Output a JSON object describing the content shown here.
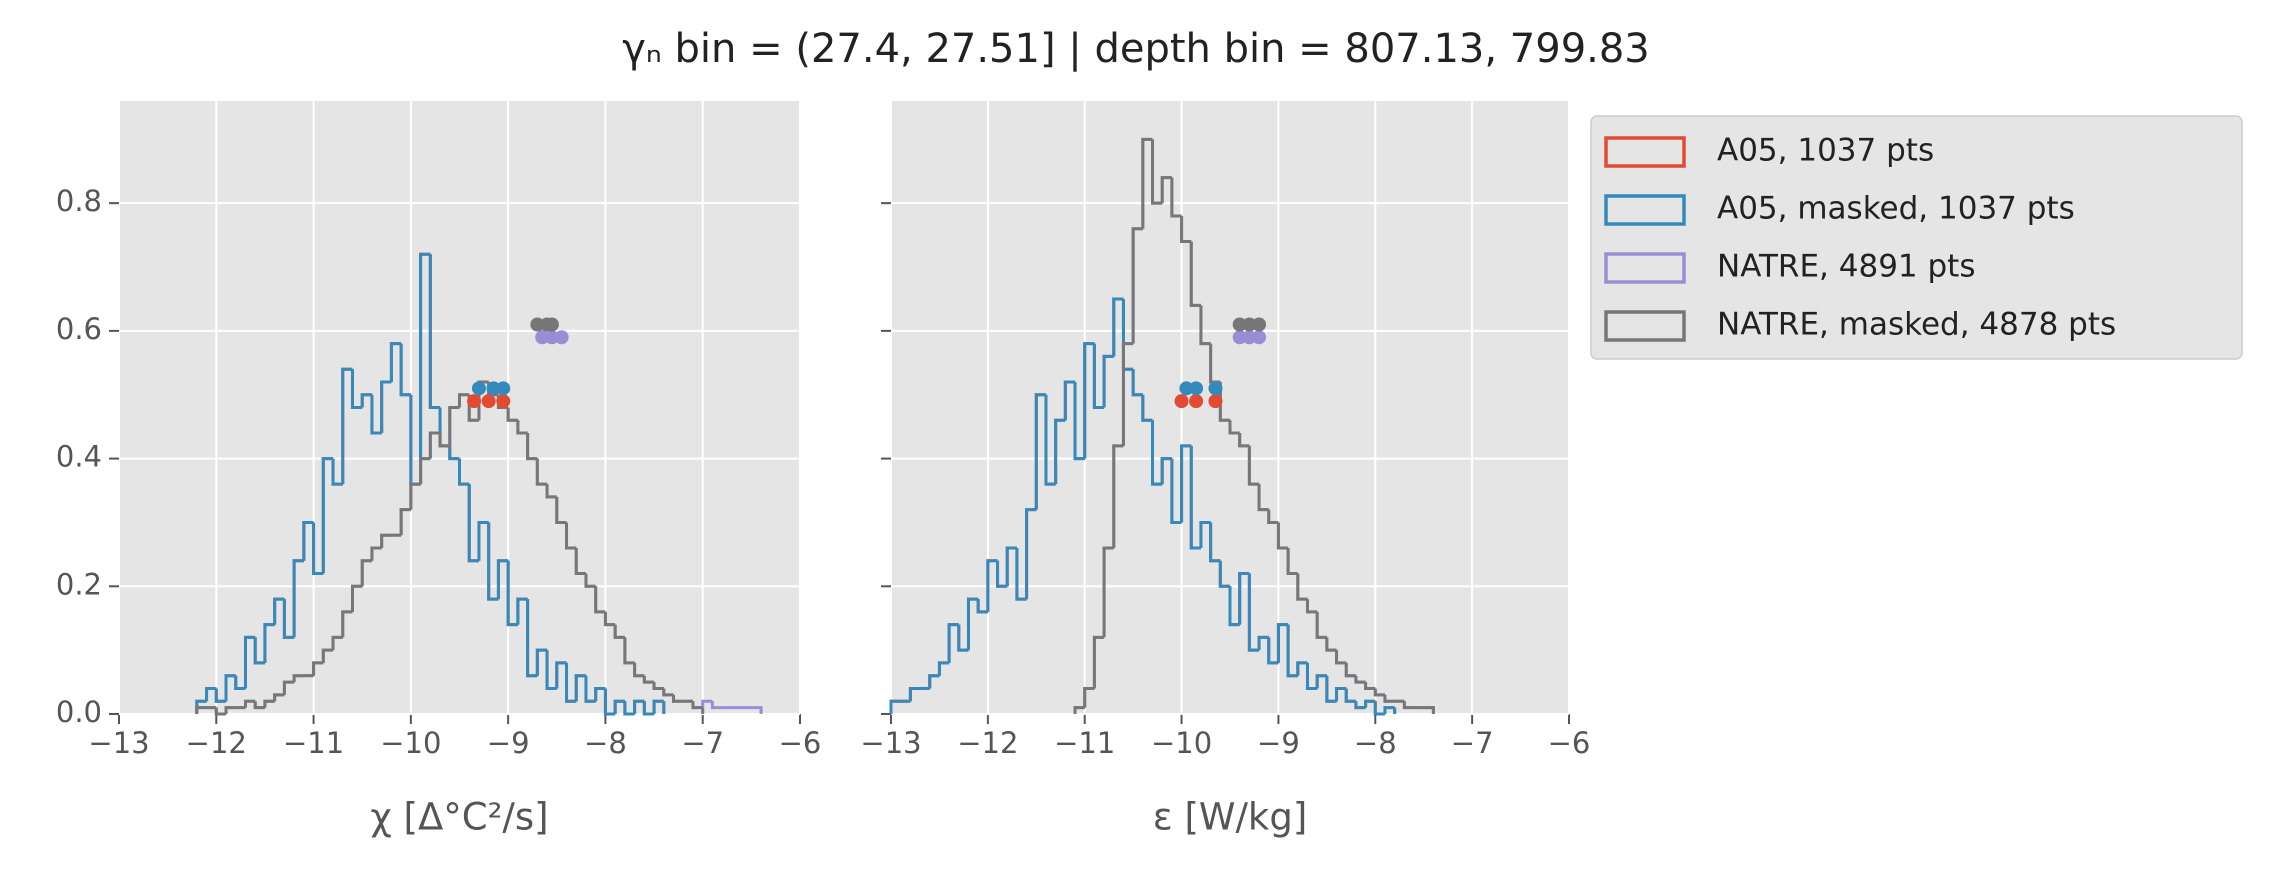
{
  "title": "γₙ bin = (27.4, 27.51] | depth bin = 807.13, 799.83",
  "legend": "outside upper right",
  "chart_data": [
    {
      "type": "histogram",
      "xlabel": "χ [Δ°C²/s]",
      "xlim": [
        -13,
        -6
      ],
      "xticks": [
        {
          "value": -13,
          "label": "−13"
        },
        {
          "value": -12,
          "label": "−12"
        },
        {
          "value": -11,
          "label": "−11"
        },
        {
          "value": -10,
          "label": "−10"
        },
        {
          "value": -9,
          "label": "−9"
        },
        {
          "value": -8,
          "label": "−8"
        },
        {
          "value": -7,
          "label": "−7"
        },
        {
          "value": -6,
          "label": "−6"
        }
      ],
      "ylim": [
        0,
        0.96
      ],
      "yticks": [
        {
          "value": 0,
          "label": "0.0"
        },
        0.2,
        0.4,
        0.6,
        0.8
      ],
      "ytick_labels": true,
      "grid": true,
      "bins": [
        -12.2,
        -12.1,
        -12.0,
        -11.9,
        -11.8,
        -11.7,
        -11.6,
        -11.5,
        -11.4,
        -11.3,
        -11.2,
        -11.1,
        -11.0,
        -10.9,
        -10.8,
        -10.7,
        -10.6,
        -10.5,
        -10.4,
        -10.3,
        -10.2,
        -10.1,
        -10.0,
        -9.9,
        -9.8,
        -9.7,
        -9.6,
        -9.5,
        -9.4,
        -9.3,
        -9.2,
        -9.1,
        -9.0,
        -8.9,
        -8.8,
        -8.7,
        -8.6,
        -8.5,
        -8.4,
        -8.3,
        -8.2,
        -8.1,
        -8.0,
        -7.9,
        -7.8,
        -7.7,
        -7.6,
        -7.5,
        -7.4,
        -7.3,
        -7.2,
        -7.1,
        -7.0,
        -6.9,
        -6.8,
        -6.7,
        -6.6,
        -6.5,
        -6.4
      ],
      "series": [
        {
          "name": "A05, 1037 pts",
          "color": "#E24A33",
          "values": [
            0.02,
            0.04,
            0.02,
            0.06,
            0.04,
            0.12,
            0.08,
            0.14,
            0.18,
            0.12,
            0.24,
            0.3,
            0.22,
            0.4,
            0.36,
            0.54,
            0.48,
            0.5,
            0.44,
            0.52,
            0.58,
            0.5,
            0.36,
            0.72,
            0.48,
            0.42,
            0.4,
            0.36,
            0.24,
            0.3,
            0.18,
            0.24,
            0.14,
            0.18,
            0.06,
            0.1,
            0.04,
            0.08,
            0.02,
            0.06,
            0.02,
            0.04,
            0.0,
            0.02,
            0.0,
            0.02,
            0.0,
            0.02,
            null,
            null,
            null,
            null,
            null,
            null,
            null,
            null,
            null,
            null
          ],
          "marker_x": [
            -9.35,
            -9.2,
            -9.05
          ],
          "marker_y": 0.49
        },
        {
          "name": "A05, masked,  1037 pts",
          "color": "#348ABD",
          "values": [
            0.02,
            0.04,
            0.02,
            0.06,
            0.04,
            0.12,
            0.08,
            0.14,
            0.18,
            0.12,
            0.24,
            0.3,
            0.22,
            0.4,
            0.36,
            0.54,
            0.48,
            0.5,
            0.44,
            0.52,
            0.58,
            0.5,
            0.36,
            0.72,
            0.48,
            0.42,
            0.4,
            0.36,
            0.24,
            0.3,
            0.18,
            0.24,
            0.14,
            0.18,
            0.06,
            0.1,
            0.04,
            0.08,
            0.02,
            0.06,
            0.02,
            0.04,
            0.0,
            0.02,
            0.0,
            0.02,
            0.0,
            0.02,
            null,
            null,
            null,
            null,
            null,
            null,
            null,
            null,
            null,
            null
          ],
          "marker_x": [
            -9.3,
            -9.15,
            -9.05
          ],
          "marker_y": 0.51
        },
        {
          "name": "NATRE, 4891 pts",
          "color": "#988ED5",
          "values": [
            0.01,
            0.01,
            0.0,
            0.01,
            0.01,
            0.02,
            0.01,
            0.02,
            0.03,
            0.05,
            0.06,
            0.06,
            0.08,
            0.1,
            0.12,
            0.16,
            0.2,
            0.24,
            0.26,
            0.28,
            0.28,
            0.32,
            0.36,
            0.4,
            0.44,
            0.42,
            0.48,
            0.5,
            0.46,
            0.52,
            0.5,
            0.48,
            0.46,
            0.44,
            0.4,
            0.36,
            0.34,
            0.3,
            0.26,
            0.22,
            0.2,
            0.16,
            0.14,
            0.12,
            0.08,
            0.06,
            0.05,
            0.04,
            0.03,
            0.02,
            0.02,
            0.01,
            0.02,
            0.01,
            0.01,
            0.01,
            0.01,
            0.01
          ],
          "marker_x": [
            -8.65,
            -8.55,
            -8.45
          ],
          "marker_y": 0.59
        },
        {
          "name": "NATRE, masked,  4878 pts",
          "color": "#777777",
          "values": [
            0.01,
            0.01,
            0.0,
            0.01,
            0.01,
            0.02,
            0.01,
            0.02,
            0.03,
            0.05,
            0.06,
            0.06,
            0.08,
            0.1,
            0.12,
            0.16,
            0.2,
            0.24,
            0.26,
            0.28,
            0.28,
            0.32,
            0.36,
            0.4,
            0.44,
            0.42,
            0.48,
            0.5,
            0.46,
            0.52,
            0.5,
            0.48,
            0.46,
            0.44,
            0.4,
            0.36,
            0.34,
            0.3,
            0.26,
            0.22,
            0.2,
            0.16,
            0.14,
            0.12,
            0.08,
            0.06,
            0.05,
            0.04,
            0.03,
            0.02,
            0.02,
            0.01,
            null,
            null,
            null,
            null,
            null,
            null
          ],
          "marker_x": [
            -8.7,
            -8.6,
            -8.55
          ],
          "marker_y": 0.61
        }
      ]
    },
    {
      "type": "histogram",
      "xlabel": "ε [W/kg]",
      "xlim": [
        -13,
        -6
      ],
      "xticks": [
        {
          "value": -13,
          "label": "−13"
        },
        {
          "value": -12,
          "label": "−12"
        },
        {
          "value": -11,
          "label": "−11"
        },
        {
          "value": -10,
          "label": "−10"
        },
        {
          "value": -9,
          "label": "−9"
        },
        {
          "value": -8,
          "label": "−8"
        },
        {
          "value": -7,
          "label": "−7"
        },
        {
          "value": -6,
          "label": "−6"
        }
      ],
      "ylim": [
        0,
        0.96
      ],
      "yticks": [
        0,
        0.2,
        0.4,
        0.6,
        0.8
      ],
      "ytick_labels": false,
      "grid": true,
      "bins": [
        -13.0,
        -12.9,
        -12.8,
        -12.7,
        -12.6,
        -12.5,
        -12.4,
        -12.3,
        -12.2,
        -12.1,
        -12.0,
        -11.9,
        -11.8,
        -11.7,
        -11.6,
        -11.5,
        -11.4,
        -11.3,
        -11.2,
        -11.1,
        -11.0,
        -10.9,
        -10.8,
        -10.7,
        -10.6,
        -10.5,
        -10.4,
        -10.3,
        -10.2,
        -10.1,
        -10.0,
        -9.9,
        -9.8,
        -9.7,
        -9.6,
        -9.5,
        -9.4,
        -9.3,
        -9.2,
        -9.1,
        -9.0,
        -8.9,
        -8.8,
        -8.7,
        -8.6,
        -8.5,
        -8.4,
        -8.3,
        -8.2,
        -8.1,
        -8.0,
        -7.9,
        -7.8,
        -7.7,
        -7.6,
        -7.5,
        -7.4
      ],
      "series": [
        {
          "color": "#E24A33",
          "values": [
            0.02,
            0.02,
            0.04,
            0.04,
            0.06,
            0.08,
            0.14,
            0.1,
            0.18,
            0.16,
            0.24,
            0.2,
            0.26,
            0.18,
            0.32,
            0.5,
            0.36,
            0.46,
            0.52,
            0.4,
            0.58,
            0.48,
            0.56,
            0.65,
            0.54,
            0.5,
            0.46,
            0.36,
            0.4,
            0.3,
            0.42,
            0.26,
            0.3,
            0.24,
            0.2,
            0.14,
            0.22,
            0.1,
            0.12,
            0.08,
            0.14,
            0.06,
            0.08,
            0.04,
            0.06,
            0.02,
            0.04,
            0.02,
            0.01,
            0.02,
            0.0,
            0.01,
            null,
            null,
            null,
            null
          ],
          "marker_x": [
            -10.0,
            -9.85,
            -9.65
          ],
          "marker_y": 0.49
        },
        {
          "color": "#348ABD",
          "values": [
            0.02,
            0.02,
            0.04,
            0.04,
            0.06,
            0.08,
            0.14,
            0.1,
            0.18,
            0.16,
            0.24,
            0.2,
            0.26,
            0.18,
            0.32,
            0.5,
            0.36,
            0.46,
            0.52,
            0.4,
            0.58,
            0.48,
            0.56,
            0.65,
            0.54,
            0.5,
            0.46,
            0.36,
            0.4,
            0.3,
            0.42,
            0.26,
            0.3,
            0.24,
            0.2,
            0.14,
            0.22,
            0.1,
            0.12,
            0.08,
            0.14,
            0.06,
            0.08,
            0.04,
            0.06,
            0.02,
            0.04,
            0.02,
            0.01,
            0.02,
            0.0,
            0.01,
            null,
            null,
            null,
            null
          ],
          "marker_x": [
            -9.95,
            -9.85,
            -9.65
          ],
          "marker_y": 0.51
        },
        {
          "color": "#988ED5",
          "values": [
            null,
            null,
            null,
            null,
            null,
            null,
            null,
            null,
            null,
            null,
            null,
            null,
            null,
            null,
            null,
            null,
            null,
            null,
            null,
            0.01,
            0.04,
            0.12,
            0.26,
            0.42,
            0.58,
            0.76,
            0.9,
            0.8,
            0.84,
            0.78,
            0.74,
            0.64,
            0.58,
            0.52,
            0.46,
            0.44,
            0.42,
            0.36,
            0.32,
            0.3,
            0.26,
            0.22,
            0.18,
            0.16,
            0.12,
            0.1,
            0.08,
            0.06,
            0.05,
            0.04,
            0.03,
            0.02,
            0.02,
            0.01,
            0.01,
            0.01
          ],
          "marker_x": [
            -9.4,
            -9.3,
            -9.2
          ],
          "marker_y": 0.59
        },
        {
          "color": "#777777",
          "values": [
            null,
            null,
            null,
            null,
            null,
            null,
            null,
            null,
            null,
            null,
            null,
            null,
            null,
            null,
            null,
            null,
            null,
            null,
            null,
            0.01,
            0.04,
            0.12,
            0.26,
            0.42,
            0.58,
            0.76,
            0.9,
            0.8,
            0.84,
            0.78,
            0.74,
            0.64,
            0.58,
            0.52,
            0.46,
            0.44,
            0.42,
            0.36,
            0.32,
            0.3,
            0.26,
            0.22,
            0.18,
            0.16,
            0.12,
            0.1,
            0.08,
            0.06,
            0.05,
            0.04,
            0.03,
            0.02,
            0.02,
            0.01,
            0.01,
            0.01
          ],
          "marker_x": [
            -9.4,
            -9.3,
            -9.2
          ],
          "marker_y": 0.61
        }
      ]
    }
  ]
}
